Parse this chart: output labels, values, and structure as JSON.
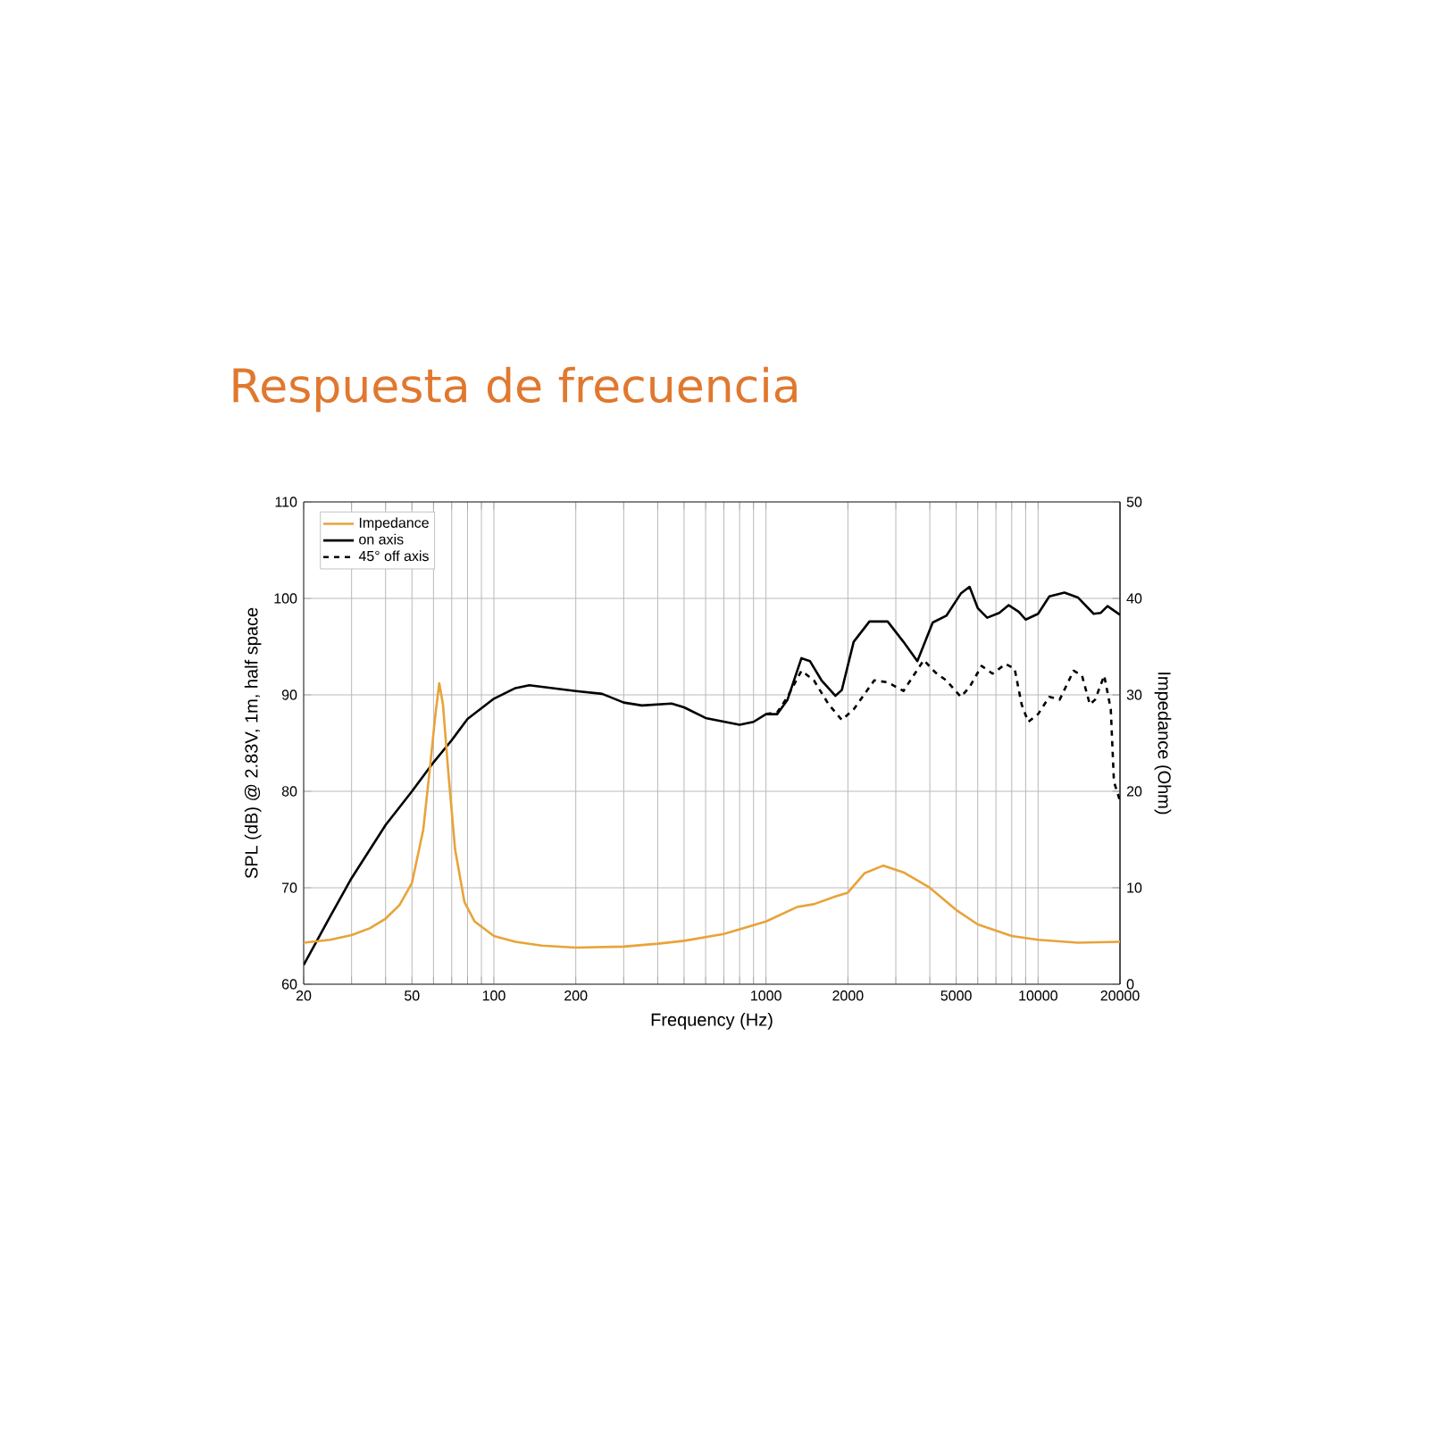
{
  "chart_data": {
    "type": "line",
    "title": "Respuesta de frecuencia",
    "xlabel": "Frequency (Hz)",
    "ylabel": "SPL (dB) @ 2.83V, 1m, half space",
    "y2label": "Impedance (Ohm)",
    "log": "x",
    "grid": true,
    "legend": "top left",
    "xlim": [
      20,
      20000
    ],
    "ylim": [
      60,
      110
    ],
    "y2lim": [
      0,
      50
    ],
    "xticks": [
      20,
      {
        "value": 30,
        "label": null
      },
      {
        "value": 40,
        "label": null
      },
      50,
      {
        "value": 60,
        "label": null
      },
      {
        "value": 70,
        "label": null
      },
      {
        "value": 80,
        "label": null
      },
      {
        "value": 90,
        "label": null
      },
      100,
      200,
      {
        "value": 300,
        "label": null
      },
      {
        "value": 400,
        "label": null
      },
      {
        "value": 500,
        "label": null
      },
      {
        "value": 600,
        "label": null
      },
      {
        "value": 700,
        "label": null
      },
      {
        "value": 800,
        "label": null
      },
      {
        "value": 900,
        "label": null
      },
      1000,
      2000,
      {
        "value": 3000,
        "label": null
      },
      {
        "value": 4000,
        "label": null
      },
      5000,
      {
        "value": 6000,
        "label": null
      },
      {
        "value": 7000,
        "label": null
      },
      {
        "value": 8000,
        "label": null
      },
      {
        "value": 9000,
        "label": null
      },
      10000,
      20000
    ],
    "yticks": [
      60,
      70,
      80,
      90,
      100,
      110
    ],
    "y2ticks": [
      0,
      10,
      20,
      30,
      40,
      50
    ],
    "series": [
      {
        "name": "Impedance",
        "color": "#e8a33a",
        "axis": "y2",
        "line_style": "solid",
        "x": [
          20,
          25,
          30,
          35,
          40,
          45,
          50,
          55,
          58,
          61,
          63,
          65,
          68,
          72,
          78,
          85,
          100,
          120,
          150,
          200,
          300,
          400,
          500,
          700,
          1000,
          1300,
          1500,
          1800,
          2000,
          2300,
          2700,
          3200,
          4000,
          5000,
          6000,
          8000,
          10000,
          14000,
          20000
        ],
        "values": [
          4.3,
          4.6,
          5.1,
          5.8,
          6.8,
          8.2,
          10.5,
          16,
          22,
          28,
          31.2,
          29,
          22,
          14,
          8.5,
          6.5,
          5,
          4.4,
          4.0,
          3.8,
          3.9,
          4.2,
          4.5,
          5.2,
          6.5,
          8,
          8.3,
          9.1,
          9.5,
          11.5,
          12.3,
          11.6,
          10,
          7.7,
          6.2,
          5,
          4.6,
          4.3,
          4.4
        ]
      },
      {
        "name": "on axis",
        "color": "#000000",
        "line_style": "solid",
        "x": [
          20,
          25,
          30,
          40,
          50,
          60,
          70,
          80,
          100,
          120,
          135,
          200,
          250,
          300,
          350,
          450,
          500,
          600,
          800,
          900,
          1000,
          1100,
          1200,
          1350,
          1450,
          1600,
          1800,
          1900,
          2100,
          2400,
          2800,
          3200,
          3600,
          4100,
          4600,
          5200,
          5600,
          6000,
          6500,
          7200,
          7800,
          8500,
          9000,
          10000,
          11000,
          12500,
          14000,
          16000,
          17000,
          18000,
          20000
        ],
        "values": [
          62,
          67,
          71,
          76.5,
          80,
          83,
          85.3,
          87.5,
          89.6,
          90.7,
          91,
          90.4,
          90.1,
          89.2,
          88.9,
          89.1,
          88.7,
          87.6,
          86.9,
          87.2,
          88,
          88,
          89.5,
          93.8,
          93.5,
          91.5,
          89.9,
          90.5,
          95.5,
          97.6,
          97.6,
          95.5,
          93.5,
          97.5,
          98.2,
          100.5,
          101.2,
          99,
          98,
          98.5,
          99.3,
          98.6,
          97.8,
          98.4,
          100.2,
          100.6,
          100.1,
          98.4,
          98.5,
          99.2,
          98.3
        ]
      },
      {
        "name": "45° off axis",
        "color": "#000000",
        "line_style": "dashed",
        "x": [
          1000,
          1100,
          1200,
          1350,
          1500,
          1700,
          1900,
          2100,
          2500,
          2800,
          3200,
          3800,
          4200,
          4600,
          5200,
          5600,
          6200,
          6800,
          7600,
          8200,
          8700,
          9200,
          10000,
          11000,
          12000,
          13500,
          14500,
          15500,
          16200,
          17500,
          18500,
          19000,
          20000
        ],
        "values": [
          88,
          88.2,
          89.8,
          92.5,
          91.5,
          89,
          87.4,
          88.5,
          91.5,
          91.3,
          90.4,
          93.6,
          92.3,
          91.5,
          89.8,
          90.8,
          93,
          92.2,
          93.2,
          92.7,
          89,
          87.2,
          88,
          89.8,
          89.5,
          92.5,
          92,
          89,
          89.5,
          92,
          88.5,
          81,
          79
        ]
      }
    ]
  }
}
